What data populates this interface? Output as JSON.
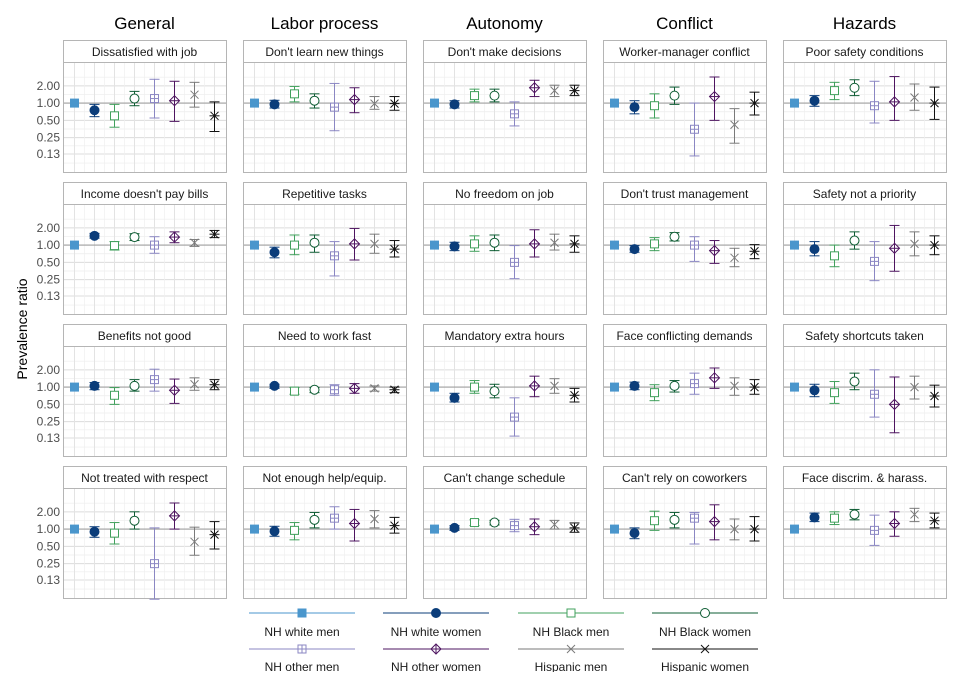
{
  "chart_data": {
    "type": "scatter",
    "subtype": "point-range faceted grid",
    "ylabel": "Prevalence ratio",
    "y_scale": "log2",
    "y_ticks": [
      0.13,
      0.25,
      0.5,
      1.0,
      2.0
    ],
    "y_tick_labels": [
      "0.13",
      "0.25",
      "0.50",
      "1.00",
      "2.00"
    ],
    "ylim": [
      0.063,
      5.2
    ],
    "reference_line": 1.0,
    "grid": true,
    "legend_position": "bottom",
    "columns": [
      "General",
      "Labor process",
      "Autonomy",
      "Conflict",
      "Hazards"
    ],
    "groups": [
      {
        "name": "NH white men",
        "color": "#4a96cc",
        "marker": "square-filled"
      },
      {
        "name": "NH white women",
        "color": "#0b3d7a",
        "marker": "circle-filled"
      },
      {
        "name": "NH Black men",
        "color": "#41a05c",
        "marker": "square-open"
      },
      {
        "name": "NH Black women",
        "color": "#0d5c33",
        "marker": "circle-open"
      },
      {
        "name": "NH other men",
        "color": "#8b87c3",
        "marker": "square-plus"
      },
      {
        "name": "NH other women",
        "color": "#4e1560",
        "marker": "diamond-plus"
      },
      {
        "name": "Hispanic men",
        "color": "#7a7a7a",
        "marker": "x"
      },
      {
        "name": "Hispanic women",
        "color": "#111111",
        "marker": "asterisk"
      }
    ],
    "panels": [
      {
        "title": "Dissatisfied with job",
        "col": 0,
        "row": 0,
        "points": [
          [
            1.0,
            1.0,
            1.0
          ],
          [
            0.75,
            0.58,
            0.95
          ],
          [
            0.6,
            0.38,
            0.95
          ],
          [
            1.2,
            0.9,
            1.6
          ],
          [
            1.2,
            0.55,
            2.6
          ],
          [
            1.1,
            0.48,
            2.4
          ],
          [
            1.4,
            0.85,
            2.3
          ],
          [
            0.6,
            0.32,
            1.05
          ]
        ]
      },
      {
        "title": "Don't learn new things",
        "col": 1,
        "row": 0,
        "points": [
          [
            1.0,
            1.0,
            1.0
          ],
          [
            0.95,
            0.82,
            1.12
          ],
          [
            1.45,
            1.05,
            1.95
          ],
          [
            1.1,
            0.82,
            1.45
          ],
          [
            0.85,
            0.33,
            2.2
          ],
          [
            1.15,
            0.68,
            1.85
          ],
          [
            0.98,
            0.78,
            1.3
          ],
          [
            0.98,
            0.75,
            1.3
          ]
        ]
      },
      {
        "title": "Don't make decisions",
        "col": 2,
        "row": 0,
        "points": [
          [
            1.0,
            1.0,
            1.0
          ],
          [
            0.95,
            0.82,
            1.1
          ],
          [
            1.35,
            1.05,
            1.75
          ],
          [
            1.35,
            1.05,
            1.75
          ],
          [
            0.65,
            0.4,
            1.05
          ],
          [
            1.85,
            1.3,
            2.5
          ],
          [
            1.65,
            1.3,
            2.05
          ],
          [
            1.65,
            1.35,
            2.05
          ]
        ]
      },
      {
        "title": "Worker-manager conflict",
        "col": 3,
        "row": 0,
        "points": [
          [
            1.0,
            1.0,
            1.0
          ],
          [
            0.85,
            0.65,
            1.1
          ],
          [
            0.9,
            0.55,
            1.45
          ],
          [
            1.35,
            0.95,
            1.9
          ],
          [
            0.35,
            0.12,
            1.0
          ],
          [
            1.3,
            0.5,
            2.85
          ],
          [
            0.42,
            0.2,
            0.8
          ],
          [
            1.0,
            0.62,
            1.55
          ]
        ]
      },
      {
        "title": "Poor safety conditions",
        "col": 4,
        "row": 0,
        "points": [
          [
            1.0,
            1.0,
            1.0
          ],
          [
            1.1,
            0.88,
            1.35
          ],
          [
            1.65,
            1.15,
            2.3
          ],
          [
            1.85,
            1.35,
            2.55
          ],
          [
            0.9,
            0.45,
            2.4
          ],
          [
            1.05,
            0.5,
            2.9
          ],
          [
            1.25,
            0.75,
            2.15
          ],
          [
            1.0,
            0.52,
            1.9
          ]
        ]
      },
      {
        "title": "Income doesn't pay bills",
        "col": 0,
        "row": 1,
        "points": [
          [
            1.0,
            1.0,
            1.0
          ],
          [
            1.45,
            1.32,
            1.6
          ],
          [
            0.98,
            0.82,
            1.15
          ],
          [
            1.38,
            1.2,
            1.58
          ],
          [
            1.0,
            0.72,
            1.4
          ],
          [
            1.38,
            1.1,
            1.7
          ],
          [
            1.1,
            0.95,
            1.25
          ],
          [
            1.55,
            1.35,
            1.8
          ]
        ]
      },
      {
        "title": "Repetitive tasks",
        "col": 1,
        "row": 1,
        "points": [
          [
            1.0,
            1.0,
            1.0
          ],
          [
            0.75,
            0.6,
            0.92
          ],
          [
            1.0,
            0.68,
            1.5
          ],
          [
            1.1,
            0.75,
            1.5
          ],
          [
            0.65,
            0.29,
            1.15
          ],
          [
            1.05,
            0.55,
            1.95
          ],
          [
            1.05,
            0.72,
            1.55
          ],
          [
            0.85,
            0.62,
            1.2
          ]
        ]
      },
      {
        "title": "No freedom on job",
        "col": 2,
        "row": 1,
        "points": [
          [
            1.0,
            1.0,
            1.0
          ],
          [
            0.95,
            0.8,
            1.12
          ],
          [
            1.05,
            0.78,
            1.45
          ],
          [
            1.1,
            0.8,
            1.5
          ],
          [
            0.5,
            0.26,
            0.98
          ],
          [
            1.05,
            0.62,
            1.85
          ],
          [
            1.1,
            0.82,
            1.55
          ],
          [
            1.05,
            0.75,
            1.45
          ]
        ]
      },
      {
        "title": "Don't trust management",
        "col": 3,
        "row": 1,
        "points": [
          [
            1.0,
            1.0,
            1.0
          ],
          [
            0.85,
            0.75,
            0.98
          ],
          [
            1.05,
            0.8,
            1.35
          ],
          [
            1.4,
            1.18,
            1.65
          ],
          [
            1.0,
            0.52,
            1.4
          ],
          [
            0.8,
            0.48,
            1.2
          ],
          [
            0.6,
            0.42,
            0.88
          ],
          [
            0.78,
            0.58,
            1.02
          ]
        ]
      },
      {
        "title": "Safety not a priority",
        "col": 4,
        "row": 1,
        "points": [
          [
            1.0,
            1.0,
            1.0
          ],
          [
            0.85,
            0.65,
            1.15
          ],
          [
            0.65,
            0.42,
            1.0
          ],
          [
            1.2,
            0.85,
            1.7
          ],
          [
            0.52,
            0.24,
            1.15
          ],
          [
            0.88,
            0.35,
            2.2
          ],
          [
            1.05,
            0.65,
            1.7
          ],
          [
            1.0,
            0.68,
            1.45
          ]
        ]
      },
      {
        "title": "Benefits not good",
        "col": 0,
        "row": 2,
        "points": [
          [
            1.0,
            1.0,
            1.0
          ],
          [
            1.05,
            0.9,
            1.2
          ],
          [
            0.72,
            0.5,
            0.98
          ],
          [
            1.05,
            0.85,
            1.35
          ],
          [
            1.35,
            0.85,
            2.05
          ],
          [
            0.88,
            0.52,
            1.38
          ],
          [
            1.12,
            0.88,
            1.45
          ],
          [
            1.1,
            0.9,
            1.35
          ]
        ]
      },
      {
        "title": "Need to work fast",
        "col": 1,
        "row": 2,
        "points": [
          [
            1.0,
            1.0,
            1.0
          ],
          [
            1.05,
            0.95,
            1.12
          ],
          [
            0.85,
            0.75,
            0.98
          ],
          [
            0.9,
            0.8,
            0.98
          ],
          [
            0.9,
            0.72,
            1.1
          ],
          [
            0.95,
            0.78,
            1.15
          ],
          [
            0.95,
            0.85,
            1.05
          ],
          [
            0.9,
            0.8,
            1.0
          ]
        ]
      },
      {
        "title": "Mandatory extra hours",
        "col": 2,
        "row": 2,
        "points": [
          [
            1.0,
            1.0,
            1.0
          ],
          [
            0.65,
            0.55,
            0.78
          ],
          [
            1.0,
            0.78,
            1.3
          ],
          [
            0.85,
            0.65,
            1.12
          ],
          [
            0.3,
            0.14,
            0.65
          ],
          [
            1.05,
            0.68,
            1.55
          ],
          [
            1.05,
            0.78,
            1.4
          ],
          [
            0.72,
            0.55,
            0.95
          ]
        ]
      },
      {
        "title": "Face conflicting demands",
        "col": 3,
        "row": 2,
        "points": [
          [
            1.0,
            1.0,
            1.0
          ],
          [
            1.05,
            0.9,
            1.22
          ],
          [
            0.8,
            0.58,
            1.1
          ],
          [
            1.05,
            0.82,
            1.3
          ],
          [
            1.15,
            0.75,
            1.75
          ],
          [
            1.45,
            0.95,
            2.15
          ],
          [
            1.05,
            0.72,
            1.45
          ],
          [
            1.0,
            0.75,
            1.35
          ]
        ]
      },
      {
        "title": "Safety shortcuts taken",
        "col": 4,
        "row": 2,
        "points": [
          [
            1.0,
            1.0,
            1.0
          ],
          [
            0.88,
            0.68,
            1.12
          ],
          [
            0.8,
            0.52,
            1.25
          ],
          [
            1.25,
            0.9,
            1.75
          ],
          [
            0.75,
            0.3,
            2.0
          ],
          [
            0.5,
            0.16,
            1.5
          ],
          [
            1.0,
            0.62,
            1.55
          ],
          [
            0.7,
            0.45,
            1.08
          ]
        ]
      },
      {
        "title": "Not treated with respect",
        "col": 0,
        "row": 3,
        "points": [
          [
            1.0,
            1.0,
            1.0
          ],
          [
            0.9,
            0.72,
            1.1
          ],
          [
            0.85,
            0.55,
            1.3
          ],
          [
            1.4,
            1.0,
            2.0
          ],
          [
            0.25,
            0.06,
            1.05
          ],
          [
            1.7,
            1.0,
            2.85
          ],
          [
            0.6,
            0.35,
            1.08
          ],
          [
            0.8,
            0.45,
            1.35
          ]
        ]
      },
      {
        "title": "Not enough help/equip.",
        "col": 1,
        "row": 3,
        "points": [
          [
            1.0,
            1.0,
            1.0
          ],
          [
            0.92,
            0.75,
            1.12
          ],
          [
            0.95,
            0.65,
            1.3
          ],
          [
            1.45,
            1.05,
            1.95
          ],
          [
            1.55,
            1.0,
            2.45
          ],
          [
            1.25,
            0.62,
            2.2
          ],
          [
            1.5,
            1.05,
            2.1
          ],
          [
            1.15,
            0.85,
            1.6
          ]
        ]
      },
      {
        "title": "Can't change schedule",
        "col": 2,
        "row": 3,
        "points": [
          [
            1.0,
            1.0,
            1.0
          ],
          [
            1.05,
            0.95,
            1.15
          ],
          [
            1.3,
            1.15,
            1.45
          ],
          [
            1.3,
            1.18,
            1.42
          ],
          [
            1.15,
            0.9,
            1.48
          ],
          [
            1.1,
            0.8,
            1.5
          ],
          [
            1.2,
            1.0,
            1.42
          ],
          [
            1.05,
            0.88,
            1.28
          ]
        ]
      },
      {
        "title": "Can't rely on coworkers",
        "col": 3,
        "row": 3,
        "points": [
          [
            1.0,
            1.0,
            1.0
          ],
          [
            0.85,
            0.68,
            1.05
          ],
          [
            1.4,
            0.95,
            2.05
          ],
          [
            1.45,
            1.05,
            1.95
          ],
          [
            1.55,
            0.55,
            1.95
          ],
          [
            1.35,
            0.65,
            2.65
          ],
          [
            1.0,
            0.65,
            1.5
          ],
          [
            1.0,
            0.62,
            1.65
          ]
        ]
      },
      {
        "title": "Face discrim. & harass.",
        "col": 4,
        "row": 3,
        "points": [
          [
            1.0,
            1.0,
            1.0
          ],
          [
            1.6,
            1.35,
            1.9
          ],
          [
            1.55,
            1.2,
            2.0
          ],
          [
            1.8,
            1.45,
            2.2
          ],
          [
            0.95,
            0.52,
            1.75
          ],
          [
            1.25,
            0.75,
            2.0
          ],
          [
            1.8,
            1.35,
            2.3
          ],
          [
            1.4,
            1.05,
            1.9
          ]
        ]
      }
    ]
  }
}
